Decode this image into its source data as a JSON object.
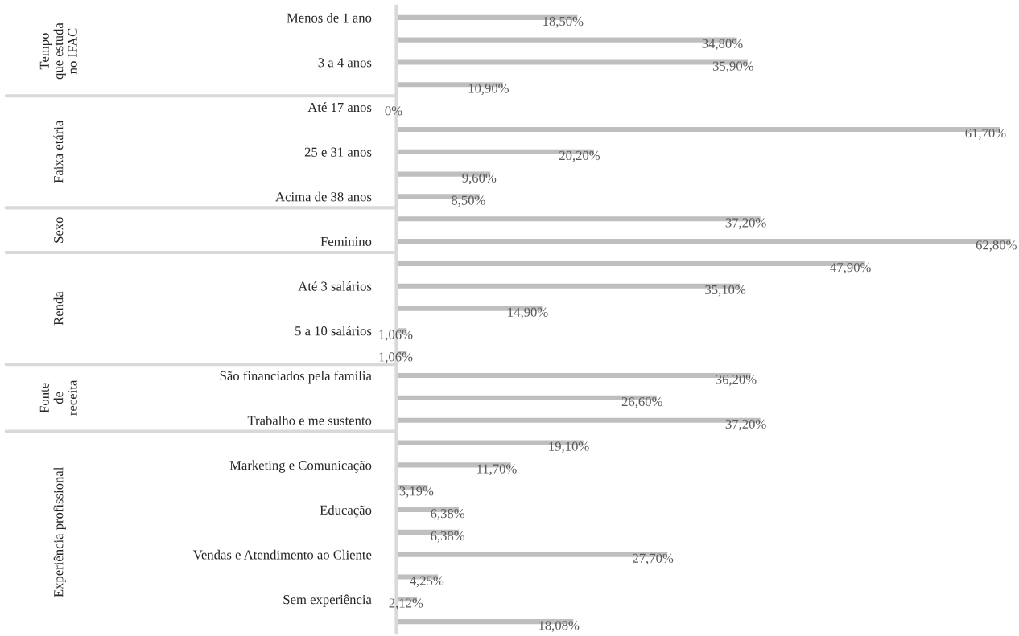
{
  "chart_data": {
    "type": "bar",
    "annotations": [
      "Tempo\nque estuda\nno IFAC",
      "Faixa etária",
      "Sexo",
      "Renda",
      "Fonte\nde\nreceita",
      "Experiência profissional"
    ],
    "orientation": "horizontal",
    "legend": false,
    "grid": false,
    "categories": [
      "Menos de 1 ano",
      null,
      "3 a 4 anos",
      null,
      "Até 17 anos",
      null,
      "25 e 31 anos",
      null,
      "Acima de 38 anos",
      null,
      "Feminino",
      null,
      "Até 3 salários",
      null,
      "5 a 10 salários",
      null,
      "São financiados pela família",
      null,
      "Trabalho e me sustento",
      null,
      "Marketing e Comunicação",
      null,
      "Educação",
      null,
      "Vendas e Atendimento ao Cliente",
      null,
      "Sem experiência",
      null
    ],
    "series": [
      {
        "color": "#bfbfbf",
        "values": [
          18.5,
          34.8,
          35.9,
          10.9,
          null,
          null,
          null,
          null,
          null,
          null,
          null,
          null,
          null,
          null,
          null,
          null,
          null,
          null,
          null,
          null,
          null,
          null,
          null,
          null,
          null,
          null,
          null,
          null
        ],
        "value_labels": [
          "18,50%",
          "34,80%",
          "35,90%",
          "10,90%",
          null,
          null,
          null,
          null,
          null,
          null,
          null,
          null,
          null,
          null,
          null,
          null,
          null,
          null,
          null,
          null,
          null,
          null,
          null,
          null,
          null,
          null,
          null,
          null
        ]
      },
      {
        "color": "#bfbfbf",
        "values": [
          null,
          null,
          null,
          null,
          0,
          61.7,
          20.2,
          9.6,
          8.5,
          null,
          null,
          null,
          null,
          null,
          null,
          null,
          null,
          null,
          null,
          null,
          null,
          null,
          null,
          null,
          null,
          null,
          null,
          null
        ],
        "value_labels": [
          null,
          null,
          null,
          null,
          "0%",
          "61,70%",
          "20,20%",
          "9,60%",
          "8,50%",
          null,
          null,
          null,
          null,
          null,
          null,
          null,
          null,
          null,
          null,
          null,
          null,
          null,
          null,
          null,
          null,
          null,
          null,
          null
        ]
      },
      {
        "color": "#bfbfbf",
        "values": [
          null,
          null,
          null,
          null,
          null,
          null,
          null,
          null,
          null,
          37.2,
          62.8,
          null,
          null,
          null,
          null,
          null,
          null,
          null,
          null,
          null,
          null,
          null,
          null,
          null,
          null,
          null,
          null,
          null
        ],
        "value_labels": [
          null,
          null,
          null,
          null,
          null,
          null,
          null,
          null,
          null,
          "37,20%",
          "62,80%",
          null,
          null,
          null,
          null,
          null,
          null,
          null,
          null,
          null,
          null,
          null,
          null,
          null,
          null,
          null,
          null,
          null
        ]
      },
      {
        "color": "#bfbfbf",
        "values": [
          null,
          null,
          null,
          null,
          null,
          null,
          null,
          null,
          null,
          null,
          null,
          47.9,
          35.1,
          14.9,
          1.06,
          1.06,
          null,
          null,
          null,
          null,
          null,
          null,
          null,
          null,
          null,
          null,
          null,
          null
        ],
        "value_labels": [
          null,
          null,
          null,
          null,
          null,
          null,
          null,
          null,
          null,
          null,
          null,
          "47,90%",
          "35,10%",
          "14,90%",
          "1,06%",
          "1,06%",
          null,
          null,
          null,
          null,
          null,
          null,
          null,
          null,
          null,
          null,
          null,
          null
        ]
      },
      {
        "color": "#bfbfbf",
        "values": [
          null,
          null,
          null,
          null,
          null,
          null,
          null,
          null,
          null,
          null,
          null,
          null,
          null,
          null,
          null,
          null,
          36.2,
          26.6,
          37.2,
          null,
          null,
          null,
          null,
          null,
          null,
          null,
          null,
          null
        ],
        "value_labels": [
          null,
          null,
          null,
          null,
          null,
          null,
          null,
          null,
          null,
          null,
          null,
          null,
          null,
          null,
          null,
          null,
          "36,20%",
          "26,60%",
          "37,20%",
          null,
          null,
          null,
          null,
          null,
          null,
          null,
          null,
          null
        ]
      },
      {
        "color": "#bfbfbf",
        "values": [
          null,
          null,
          null,
          null,
          null,
          null,
          null,
          null,
          null,
          null,
          null,
          null,
          null,
          null,
          null,
          null,
          null,
          null,
          null,
          19.1,
          11.7,
          3.19,
          6.38,
          6.38,
          27.7,
          4.25,
          2.12,
          18.08
        ],
        "value_labels": [
          null,
          null,
          null,
          null,
          null,
          null,
          null,
          null,
          null,
          null,
          null,
          null,
          null,
          null,
          null,
          null,
          null,
          null,
          null,
          "19,10%",
          "11,70%",
          "3,19%",
          "6,38%",
          "6,38%",
          "27,70%",
          "4,25%",
          "2,12%",
          "18,08%"
        ]
      }
    ]
  }
}
